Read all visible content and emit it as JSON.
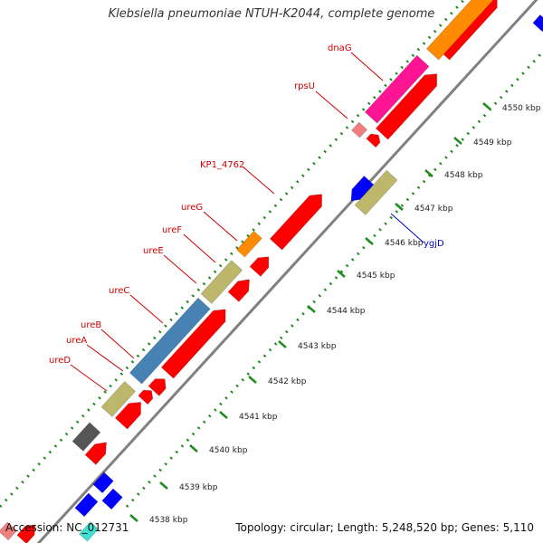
{
  "title": "Klebsiella pneumoniae NTUH-K2044, complete genome",
  "accession_label": "Accession: NC_012731",
  "summary": "Topology: circular; Length: 5,248,520 bp; Genes: 5,110",
  "colors": {
    "backbone": "#808080",
    "gc_dots": "#1f8a1f",
    "cds": "#ff0000",
    "gene_magenta": "#ff1493",
    "gene_orange": "#ff8c00",
    "gene_khaki": "#bdb76b",
    "gene_steelblue": "#4682b4",
    "gene_blue": "#0000ff",
    "gene_gray": "#555555",
    "gene_pink": "#f08080",
    "gene_cyan": "#40e0d0",
    "label_red": "#cc0000",
    "label_blue": "#0000cc"
  },
  "ticks": [
    {
      "label": "4538 kbp"
    },
    {
      "label": "4539 kbp"
    },
    {
      "label": "4540 kbp"
    },
    {
      "label": "4541 kbp"
    },
    {
      "label": "4542 kbp"
    },
    {
      "label": "4543 kbp"
    },
    {
      "label": "4544 kbp"
    },
    {
      "label": "4545 kbp"
    },
    {
      "label": "4546 kbp"
    },
    {
      "label": "4547 kbp"
    },
    {
      "label": "4548 kbp"
    },
    {
      "label": "4549 kbp"
    },
    {
      "label": "4550 kbp"
    }
  ],
  "gene_labels": [
    {
      "name": "dnaG",
      "color_key": "label_red"
    },
    {
      "name": "rpsU",
      "color_key": "label_red"
    },
    {
      "name": "KP1_4762",
      "color_key": "label_red"
    },
    {
      "name": "ureG",
      "color_key": "label_red"
    },
    {
      "name": "ureF",
      "color_key": "label_red"
    },
    {
      "name": "ureE",
      "color_key": "label_red"
    },
    {
      "name": "ureC",
      "color_key": "label_red"
    },
    {
      "name": "ureB",
      "color_key": "label_red"
    },
    {
      "name": "ureA",
      "color_key": "label_red"
    },
    {
      "name": "ureD",
      "color_key": "label_red"
    },
    {
      "name": "ygjD",
      "color_key": "label_blue"
    }
  ]
}
